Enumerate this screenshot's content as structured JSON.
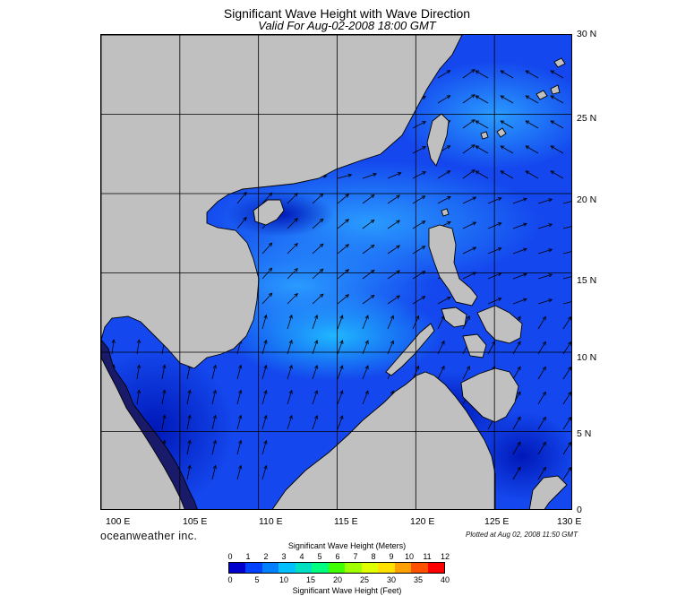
{
  "title": "Significant Wave Height with Wave Direction",
  "subtitle": "Valid For Aug-02-2008 18:00 GMT",
  "map": {
    "region": "South China Sea",
    "lon_range": [
      100,
      130
    ],
    "lat_range": [
      0,
      30
    ],
    "lat_labels": [
      "30 N",
      "25 N",
      "20 N",
      "15 N",
      "10 N",
      "5 N",
      "0"
    ],
    "lon_labels": [
      "100 E",
      "105 E",
      "110 E",
      "115 E",
      "120 E",
      "125 E",
      "130 E"
    ],
    "land_color": "#c0c0c0",
    "grid": true,
    "arrows": "wave direction vectors",
    "dominant_wave_direction": "toward north-east (south-west monsoon)"
  },
  "brand": "oceanweather inc.",
  "plotted": "Plotted at Aug 02, 2008 11:50 GMT",
  "colorbar": {
    "meters_title": "Significant Wave Height (Meters)",
    "meters_ticks": [
      "0",
      "1",
      "2",
      "3",
      "4",
      "5",
      "6",
      "7",
      "8",
      "9",
      "10",
      "11",
      "12"
    ],
    "feet_title": "Significant Wave Height (Feet)",
    "feet_ticks": [
      "0",
      "5",
      "10",
      "15",
      "20",
      "25",
      "30",
      "35",
      "40"
    ],
    "colors": [
      "#0000cc",
      "#0040ff",
      "#0080ff",
      "#00c0ff",
      "#00e0c0",
      "#00ff80",
      "#40ff00",
      "#a0ff00",
      "#e0ff00",
      "#ffe000",
      "#ffa000",
      "#ff5000",
      "#ff0000"
    ]
  }
}
